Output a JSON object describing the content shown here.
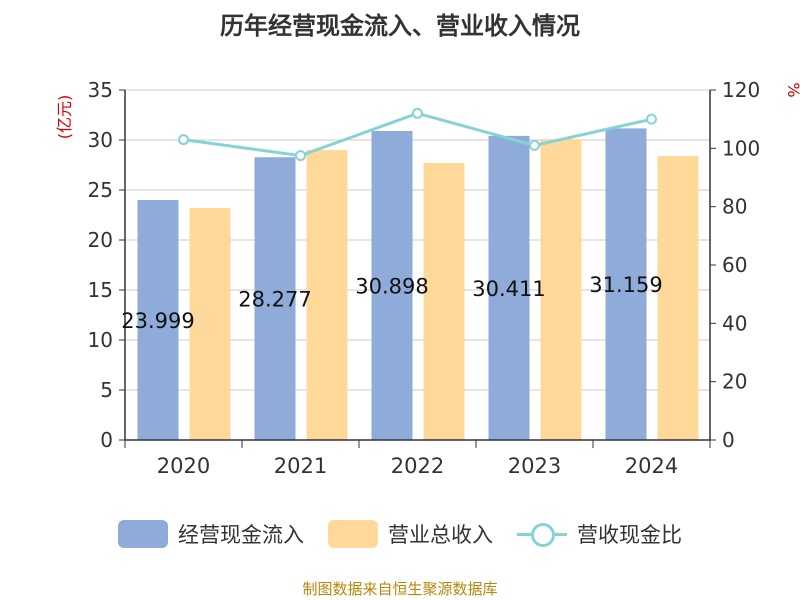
{
  "title": "历年经营现金流入、营业收入情况",
  "source": "制图数据来自恒生聚源数据库",
  "colors": {
    "cash_inflow": "#8eabd9",
    "revenue": "#ffd89a",
    "ratio": "#86d3d6",
    "label": "#111111",
    "axis": "#333333",
    "grid": "#cccccc",
    "unit": "#d40000"
  },
  "chart_data": {
    "type": "bar",
    "categories": [
      "2020",
      "2021",
      "2022",
      "2023",
      "2024"
    ],
    "series": [
      {
        "name": "经营现金流入",
        "type": "bar",
        "axis": "left",
        "values": [
          23.999,
          28.277,
          30.898,
          30.411,
          31.159
        ],
        "data_labels": [
          "23.999",
          "28.277",
          "30.898",
          "30.411",
          "31.159"
        ]
      },
      {
        "name": "营业总收入",
        "type": "bar",
        "axis": "left",
        "values": [
          23.2,
          29.0,
          27.7,
          30.1,
          28.4
        ]
      },
      {
        "name": "营收现金比",
        "type": "line",
        "axis": "right",
        "values": [
          103,
          97.5,
          112,
          101,
          110
        ]
      }
    ],
    "yleft": {
      "label": "(亿元)",
      "min": 0,
      "max": 35,
      "ticks": [
        0,
        5,
        10,
        15,
        20,
        25,
        30,
        35
      ]
    },
    "yright": {
      "label": "%",
      "min": 0,
      "max": 120,
      "ticks": [
        0,
        20,
        40,
        60,
        80,
        100,
        120
      ]
    },
    "grid": true,
    "legend": "bottom"
  }
}
